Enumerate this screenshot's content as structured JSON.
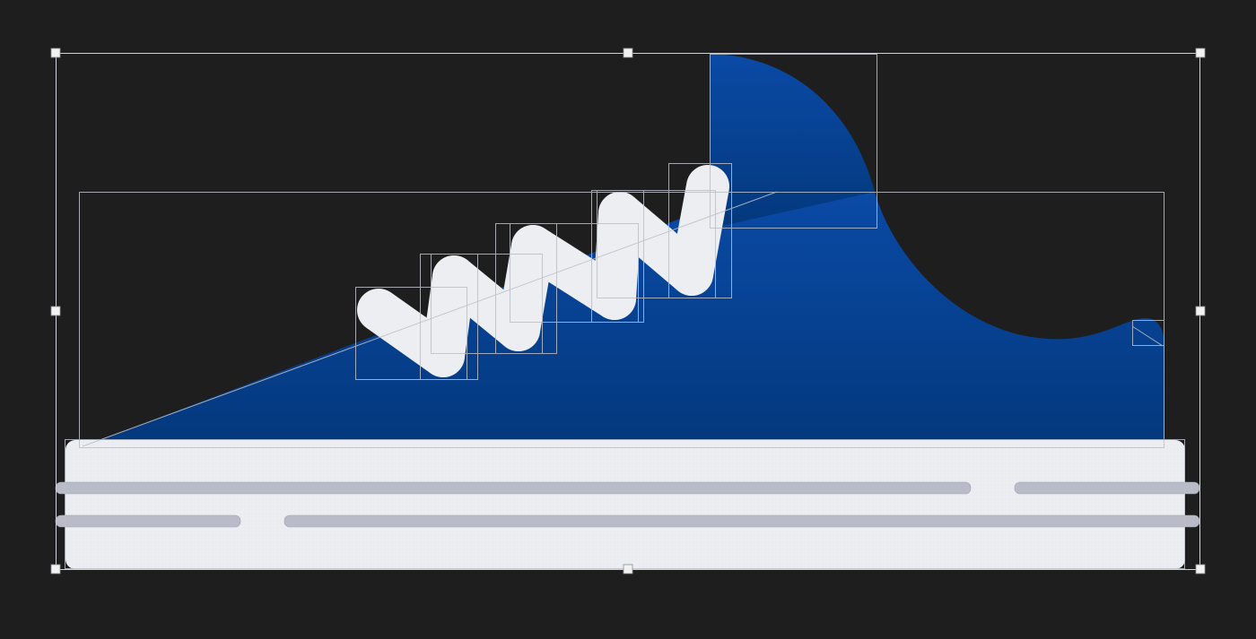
{
  "canvas": {
    "background_color": "#1e1e1e"
  },
  "artwork": {
    "subject": "sneaker",
    "upper_fill_top": "#0a4aa6",
    "upper_fill_bottom": "#03387c",
    "sole_fill": "#eceef2",
    "sole_stripe_color": "#b9bcc8",
    "lace_color": "#eceef2",
    "lace_segment_count": 8
  },
  "editor": {
    "selection_outline_color": "#cfd2d8",
    "bounding_box_color": "#bcbfc6",
    "handle_fill": "#f2f2f2",
    "selection_handles": [
      "top-left",
      "top-center",
      "top-right",
      "middle-left",
      "middle-right",
      "bottom-left",
      "bottom-center",
      "bottom-right"
    ],
    "show_object_bounding_boxes": true
  }
}
